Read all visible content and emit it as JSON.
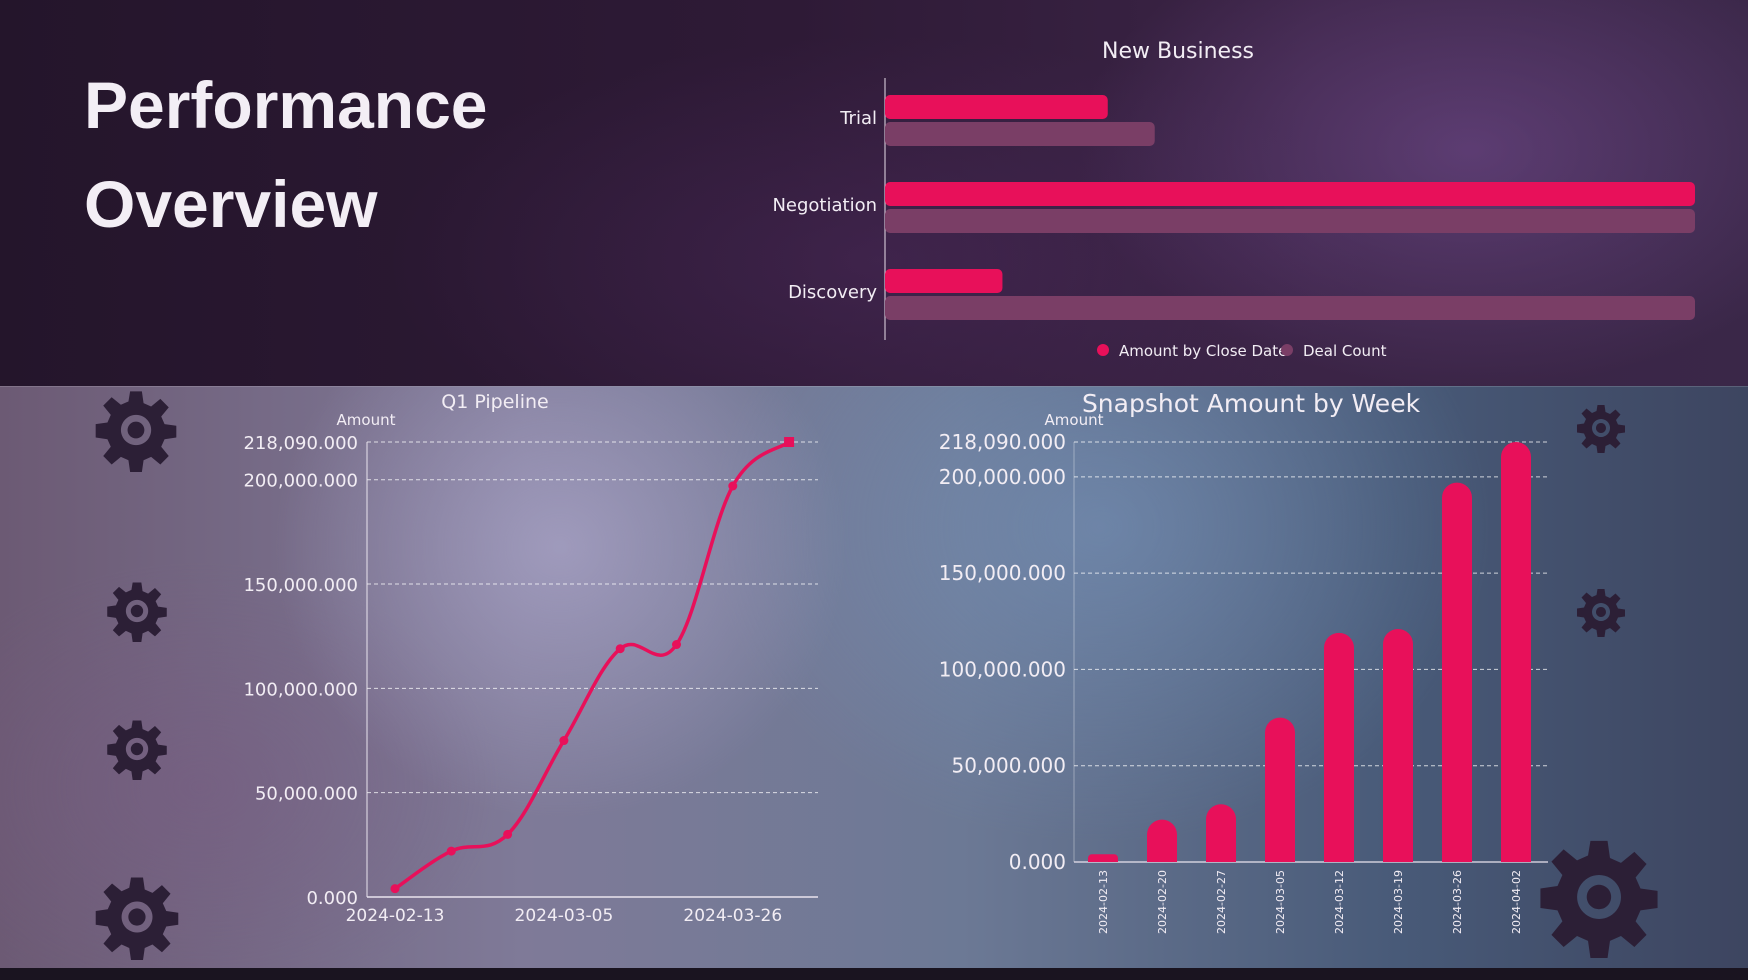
{
  "page": {
    "title_line1": "Performance",
    "title_line2": "Overview"
  },
  "colors": {
    "accent": "#E8105A",
    "secondary": "#7A3E66"
  },
  "chart_data": [
    {
      "id": "new-business",
      "type": "bar",
      "orientation": "horizontal",
      "title": "New Business",
      "categories": [
        "Trial",
        "Negotiation",
        "Discovery"
      ],
      "series": [
        {
          "name": "Amount by Close Date",
          "values": [
            27.5,
            100,
            14.5
          ],
          "color": "#E8105A"
        },
        {
          "name": "Deal Count",
          "values": [
            33.3,
            100,
            100
          ],
          "color": "#7A3E66"
        }
      ],
      "xlim": [
        0,
        100
      ],
      "legend": "bottom"
    },
    {
      "id": "q1-pipeline",
      "type": "line",
      "title": "Q1 Pipeline",
      "ylabel": "Amount",
      "x_tick_labels": [
        "2024-02-13",
        "2024-03-05",
        "2024-03-26"
      ],
      "x": [
        0,
        1,
        2,
        3,
        4,
        5,
        6,
        7
      ],
      "values": [
        4000,
        22000,
        30000,
        75000,
        119000,
        121000,
        197000,
        218090
      ],
      "x_tick_positions": [
        0,
        3,
        6
      ],
      "y_ticks": [
        "0.000",
        "50,000.000",
        "100,000.000",
        "150,000.000",
        "200,000.000",
        "218,090.000"
      ],
      "y_tick_values": [
        0,
        50000,
        100000,
        150000,
        200000,
        218090
      ],
      "ylim": [
        0,
        218090
      ],
      "grid": true
    },
    {
      "id": "snapshot-by-week",
      "type": "bar",
      "title": "Snapshot Amount by Week",
      "ylabel": "Amount",
      "categories": [
        "2024-02-13",
        "2024-02-20",
        "2024-02-27",
        "2024-03-05",
        "2024-03-12",
        "2024-03-19",
        "2024-03-26",
        "2024-04-02"
      ],
      "values": [
        4000,
        22000,
        30000,
        75000,
        119000,
        121000,
        197000,
        218090
      ],
      "y_ticks": [
        "0.000",
        "50,000.000",
        "100,000.000",
        "150,000.000",
        "200,000.000",
        "218,090.000"
      ],
      "y_tick_values": [
        0,
        50000,
        100000,
        150000,
        200000,
        218090
      ],
      "ylim": [
        0,
        218090
      ],
      "grid": true
    }
  ]
}
